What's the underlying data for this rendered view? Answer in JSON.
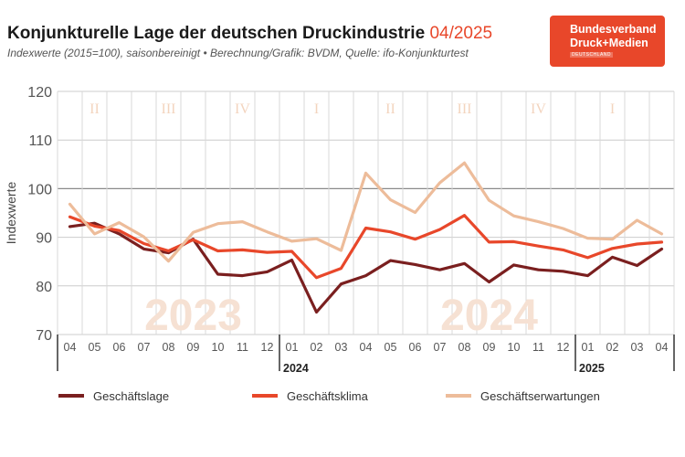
{
  "header": {
    "title": "Konjunkturelle Lage der deutschen Druckindustrie",
    "period": "04/2025",
    "subtitle": "Indexwerte (2015=100), saisonbereinigt • Berechnung/Grafik: BVDM, Quelle: ifo-Konjunkturtest"
  },
  "logo": {
    "line1": "Bundesverband",
    "line2": "Druck+Medien",
    "line3": "DEUTSCHLAND"
  },
  "chart_data": {
    "type": "line",
    "ylabel": "Indexwerte",
    "ylim": [
      70,
      120
    ],
    "yticks": [
      70,
      80,
      90,
      100,
      110,
      120
    ],
    "grid": true,
    "x": [
      "04",
      "05",
      "06",
      "07",
      "08",
      "09",
      "10",
      "11",
      "12",
      "01",
      "02",
      "03",
      "04",
      "05",
      "06",
      "07",
      "08",
      "09",
      "10",
      "11",
      "12",
      "01",
      "02",
      "03",
      "04"
    ],
    "year_labels": [
      {
        "label": "2024",
        "at": "01"
      },
      {
        "label": "2025",
        "at": "01"
      }
    ],
    "quarters": [
      "II",
      "III",
      "IV",
      "I",
      "II",
      "III",
      "IV",
      "I"
    ],
    "watermarks": [
      "2023",
      "2024"
    ],
    "legend_position": "bottom",
    "series": [
      {
        "name": "Geschäftslage",
        "color": "#7a1f1f",
        "values": [
          92.2,
          92.9,
          90.7,
          87.6,
          86.8,
          89.6,
          82.4,
          82.1,
          82.9,
          85.3,
          74.6,
          80.4,
          82.1,
          85.2,
          84.4,
          83.3,
          84.6,
          80.8,
          84.3,
          83.3,
          83.0,
          82.1,
          85.9,
          84.2,
          87.6
        ]
      },
      {
        "name": "Geschäftsklima",
        "color": "#e8472a",
        "values": [
          94.2,
          92.3,
          91.4,
          88.7,
          87.2,
          89.5,
          87.2,
          87.4,
          86.9,
          87.1,
          81.7,
          83.6,
          91.9,
          91.1,
          89.6,
          91.6,
          94.5,
          89.0,
          89.1,
          88.2,
          87.4,
          85.8,
          87.7,
          88.6,
          89.0
        ]
      },
      {
        "name": "Geschäftserwartungen",
        "color": "#edbc9a",
        "values": [
          96.8,
          90.7,
          93.0,
          90.1,
          85.1,
          91.0,
          92.8,
          93.2,
          91.1,
          89.2,
          89.7,
          87.3,
          103.2,
          97.7,
          95.1,
          101.2,
          105.3,
          97.6,
          94.4,
          93.2,
          91.8,
          89.8,
          89.6,
          93.5,
          90.7
        ]
      }
    ]
  }
}
